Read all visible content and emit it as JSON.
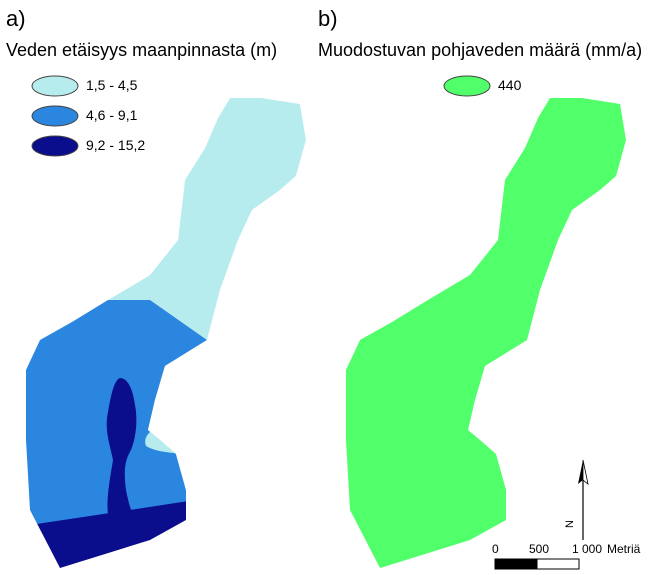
{
  "panel_a": {
    "label": "a)",
    "title": "Veden etäisyys maanpinnasta (m)",
    "legend": [
      {
        "label": "1,5 - 4,5",
        "color": "#b7ecef"
      },
      {
        "label": "4,6 - 9,1",
        "color": "#2b86e0"
      },
      {
        "label": "9,2 - 15,2",
        "color": "#0b0e8c"
      }
    ]
  },
  "panel_b": {
    "label": "b)",
    "title": "Muodostuvan pohjaveden määrä (mm/a)",
    "legend": [
      {
        "label": "440",
        "color": "#50ff6a"
      }
    ]
  },
  "scale_bar": {
    "labels": [
      "0",
      "500",
      "1 000"
    ],
    "unit": "Metriä"
  },
  "north_arrow": {
    "letter": "N"
  }
}
